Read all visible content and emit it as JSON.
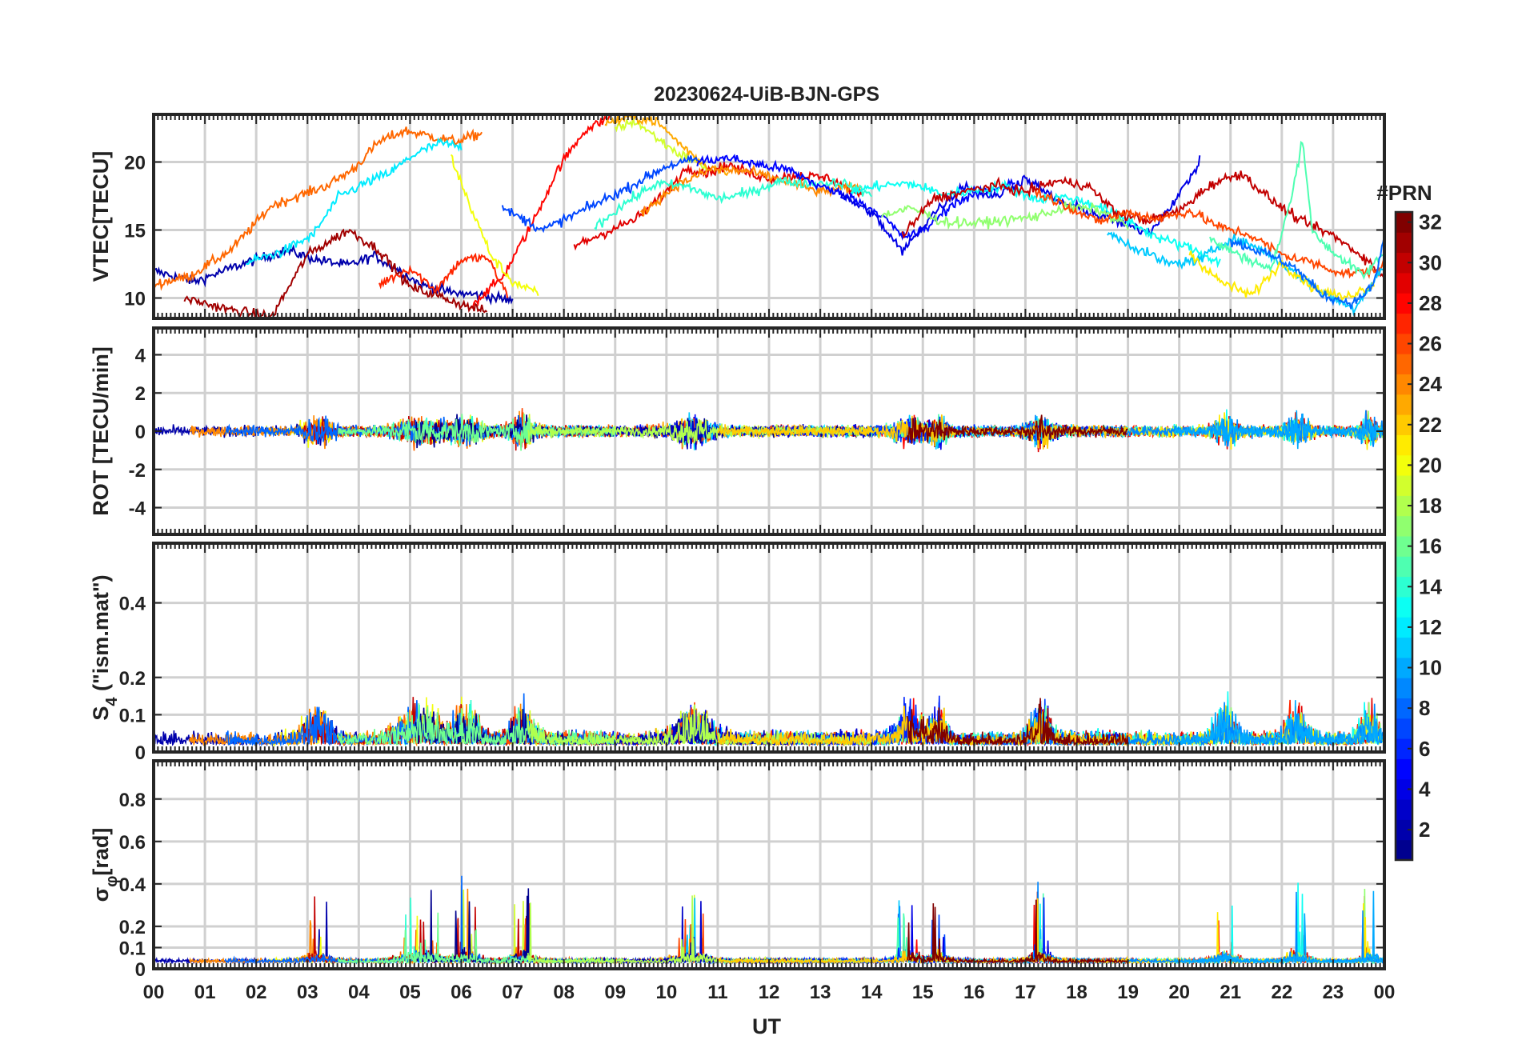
{
  "figure": {
    "title": "20230624-UiB-BJN-GPS",
    "xlabel": "UT",
    "x_ticks": [
      "00",
      "01",
      "02",
      "03",
      "04",
      "05",
      "06",
      "07",
      "08",
      "09",
      "10",
      "11",
      "12",
      "13",
      "14",
      "15",
      "16",
      "17",
      "18",
      "19",
      "20",
      "21",
      "22",
      "23",
      "00"
    ]
  },
  "colorbar": {
    "label": "#PRN",
    "ticks": [
      2,
      4,
      6,
      8,
      10,
      12,
      14,
      16,
      18,
      20,
      22,
      24,
      26,
      28,
      30,
      32
    ],
    "range": [
      1,
      32
    ],
    "colors": [
      "#00008f",
      "#0000ff",
      "#0080ff",
      "#00ffff",
      "#80ff80",
      "#ffff00",
      "#ff8000",
      "#ff0000",
      "#800000"
    ]
  },
  "chart_data": [
    {
      "type": "line",
      "ylabel": "VTEC[TECU]",
      "ylim": [
        8.5,
        23.5
      ],
      "y_ticks": [
        10,
        15,
        20
      ],
      "xlim": [
        0,
        24
      ],
      "series": [
        {
          "prn": 2,
          "x": [
            0,
            0.8,
            1.8,
            2.6,
            3.2,
            3.8,
            4.3,
            4.8,
            5.2,
            5.8,
            6.4,
            7.0
          ],
          "y": [
            12,
            11.2,
            12.6,
            13.5,
            12.8,
            12.4,
            13.1,
            12,
            11,
            10.4,
            10.2,
            9.8
          ]
        },
        {
          "prn": 25,
          "x": [
            0,
            0.7,
            1.5,
            2.3,
            2.9,
            3.4,
            3.9,
            4.4,
            4.9,
            5.4,
            5.9,
            6.4
          ],
          "y": [
            11,
            11.6,
            13.5,
            16.8,
            17.6,
            18.3,
            19.5,
            21.5,
            22.3,
            21.9,
            21.5,
            22.1
          ]
        },
        {
          "prn": 12,
          "x": [
            1.8,
            2.5,
            3.1,
            3.6,
            4.1,
            4.6,
            5.1,
            5.6,
            6.0
          ],
          "y": [
            12.6,
            13.4,
            14.6,
            17.4,
            18.4,
            19.2,
            20.6,
            21.4,
            21.1
          ]
        },
        {
          "prn": 28,
          "x": [
            6.2,
            6.8,
            7.4,
            7.9,
            8.4,
            8.9
          ],
          "y": [
            9.5,
            11.5,
            15.6,
            19.6,
            22.3,
            23.3
          ]
        },
        {
          "prn": 31,
          "x": [
            0.6,
            1.4,
            2.3,
            3.0,
            3.8,
            4.4,
            5.0,
            5.6,
            6.1,
            6.5
          ],
          "y": [
            10,
            9.2,
            8.6,
            13.2,
            15,
            13.5,
            10.8,
            10.1,
            9.4,
            9.0
          ]
        },
        {
          "prn": 27,
          "x": [
            4.4,
            5.0,
            5.5,
            6.0,
            6.5,
            6.9
          ],
          "y": [
            11,
            12.2,
            10.6,
            12.8,
            13,
            10.2
          ]
        },
        {
          "prn": 20,
          "x": [
            5.8,
            6.2,
            6.6,
            7.0,
            7.5
          ],
          "y": [
            20.4,
            16.5,
            13,
            11.2,
            10.3
          ]
        },
        {
          "prn": 19,
          "x": [
            9.0,
            9.4,
            9.8,
            10.2,
            10.8
          ],
          "y": [
            22.5,
            23,
            21.8,
            20.7,
            19.6
          ]
        },
        {
          "prn": 23,
          "x": [
            8.8,
            9.3,
            9.8,
            10.3,
            10.8,
            11.2
          ],
          "y": [
            22.8,
            23.3,
            23,
            21.2,
            19.6,
            19.4
          ]
        },
        {
          "prn": 7,
          "x": [
            6.8,
            7.6,
            8.4,
            9.2,
            10.0,
            10.6
          ],
          "y": [
            16.6,
            15,
            16.5,
            18,
            19.7,
            20.2
          ]
        },
        {
          "prn": 29,
          "x": [
            8.2,
            8.8,
            9.4,
            10.0,
            10.4,
            10.8,
            11.2,
            11.6,
            12.0,
            12.6,
            13.2,
            13.8
          ],
          "y": [
            13.8,
            14.8,
            15.8,
            17.8,
            19.6,
            19.2,
            19.8,
            19.2,
            18.8,
            19,
            18.8,
            17.5
          ]
        },
        {
          "prn": 24,
          "x": [
            9.5,
            10.2,
            10.9,
            11.6,
            12.3,
            13.0,
            13.8
          ],
          "y": [
            16.2,
            18.3,
            19.5,
            19.3,
            18.6,
            17.8,
            18.2
          ]
        },
        {
          "prn": 14,
          "x": [
            8.6,
            9.2,
            9.8,
            10.4,
            11.0,
            11.6,
            12.2,
            12.8,
            13.4,
            14.0
          ],
          "y": [
            15.2,
            17,
            18.4,
            18.2,
            17.3,
            17.7,
            18.6,
            18.4,
            18.5,
            17.6
          ]
        },
        {
          "prn": 5,
          "x": [
            10.6,
            11.2,
            11.8,
            12.4,
            13.0,
            13.6,
            14.2,
            14.6,
            15.0,
            15.6,
            16.2,
            16.8
          ],
          "y": [
            20,
            20.3,
            19.8,
            19.4,
            18.2,
            17.4,
            16.1,
            14.5,
            14.9,
            17,
            17.8,
            18.6
          ]
        },
        {
          "prn": 4,
          "x": [
            13.4,
            14.0,
            14.6,
            15.2,
            15.8,
            16.4,
            17.0,
            17.6,
            18.2,
            18.8,
            19.4,
            20.0,
            20.4
          ],
          "y": [
            17.5,
            16.3,
            13.4,
            16.2,
            18.3,
            17.4,
            18.8,
            17.2,
            16.4,
            15.6,
            14.8,
            17.6,
            20
          ]
        },
        {
          "prn": 13,
          "x": [
            13.6,
            14.2,
            14.8,
            15.4,
            16.0,
            16.6,
            17.2,
            17.8,
            18.4,
            19.0,
            19.6,
            20.2,
            20.8
          ],
          "y": [
            17.8,
            18.3,
            18.4,
            17.6,
            17.9,
            18.2,
            17.3,
            17.4,
            16.8,
            15.7,
            14.4,
            13.7,
            12.6
          ]
        },
        {
          "prn": 17,
          "x": [
            14.2,
            14.8,
            15.4,
            16.0,
            16.6,
            17.2,
            17.8,
            18.4,
            19.0
          ],
          "y": [
            16.1,
            16.6,
            15.6,
            15.5,
            15.7,
            16,
            16.7,
            16.5,
            15.3
          ]
        },
        {
          "prn": 30,
          "x": [
            14.6,
            15.2,
            15.8,
            16.4,
            17.0,
            17.6,
            18.2,
            18.8,
            19.4,
            20.0,
            20.6,
            21.2,
            21.8,
            22.4,
            23.0,
            23.6,
            24.0
          ],
          "y": [
            14.5,
            17.3,
            17.8,
            18.3,
            17.8,
            18.6,
            18.3,
            16.2,
            15.7,
            16.4,
            18.3,
            19.2,
            17.2,
            15.6,
            14.6,
            13,
            11.5
          ]
        },
        {
          "prn": 26,
          "x": [
            17.2,
            17.8,
            18.4,
            19.0,
            19.6,
            20.2,
            20.8,
            21.4,
            22.0,
            22.6,
            23.2,
            23.8,
            24.0
          ],
          "y": [
            17.8,
            16.8,
            15.6,
            16.3,
            15.8,
            16.4,
            15.2,
            14.6,
            13.2,
            12.6,
            11.8,
            12,
            12.3
          ]
        },
        {
          "prn": 11,
          "x": [
            18.6,
            19.2,
            19.8,
            20.4,
            21.0,
            21.6,
            22.2,
            22.8,
            23.4,
            24.0
          ],
          "y": [
            14.8,
            13.6,
            12.5,
            12.8,
            14.4,
            13.6,
            12,
            10.4,
            9.2,
            12.4
          ]
        },
        {
          "prn": 15,
          "x": [
            20.6,
            21.2,
            21.8,
            22.2,
            22.4,
            22.6,
            23.0,
            23.6,
            24.0
          ],
          "y": [
            14.3,
            13.1,
            12.1,
            17.5,
            21.8,
            14.8,
            13.4,
            11.6,
            13.4
          ]
        },
        {
          "prn": 21,
          "x": [
            20.2,
            20.8,
            21.4,
            22.0,
            22.6,
            23.2,
            23.8
          ],
          "y": [
            13.3,
            11.2,
            10.2,
            12.6,
            10.8,
            10,
            11
          ]
        },
        {
          "prn": 8,
          "x": [
            21.0,
            21.6,
            22.2,
            22.8,
            23.4,
            23.8,
            24.0
          ],
          "y": [
            14.2,
            13.4,
            12.4,
            10.2,
            9.6,
            11,
            14.6
          ]
        }
      ]
    },
    {
      "type": "line",
      "ylabel": "ROT [TECU/min]",
      "ylim": [
        -5.4,
        5.4
      ],
      "y_ticks": [
        -4,
        -2,
        0,
        2,
        4
      ],
      "xlim": [
        0,
        24
      ],
      "series": []
    },
    {
      "type": "line",
      "ylabel": "S4 (\"ism.mat\")",
      "ylabel_main": "S",
      "ylabel_sub": "4",
      "ylabel_rest": " (\"ism.mat\")",
      "ylim": [
        0,
        0.56
      ],
      "y_ticks": [
        0,
        0.1,
        0.2,
        0.4
      ],
      "xlim": [
        0,
        24
      ],
      "series": []
    },
    {
      "type": "line",
      "ylabel": "σφ[rad]",
      "ylabel_main": "σ",
      "ylabel_sub": "φ",
      "ylabel_rest": "[rad]",
      "ylim": [
        0,
        0.98
      ],
      "y_ticks": [
        0,
        0.1,
        0.2,
        0.4,
        0.6,
        0.8
      ],
      "xlim": [
        0,
        24
      ],
      "series": []
    }
  ]
}
